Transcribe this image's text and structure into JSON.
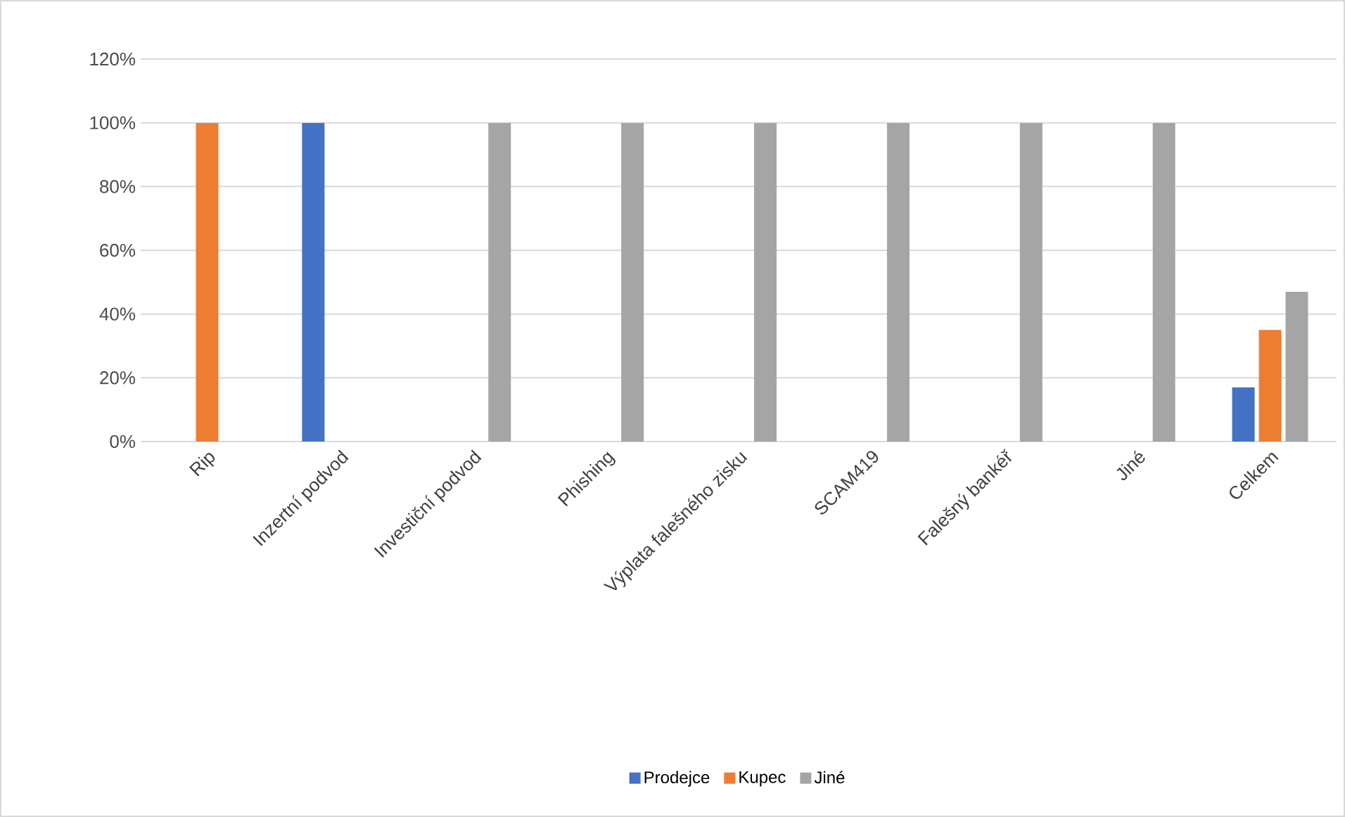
{
  "chart_data": {
    "type": "bar",
    "categories": [
      "Rip",
      "Inzertní podvod",
      "Investiční podvod",
      "Phishing",
      "Výplata falešného zisku",
      "SCAM419",
      "Falešný bankéř",
      "Jiné",
      "Celkem"
    ],
    "series": [
      {
        "name": "Prodejce",
        "color": "#4472c4",
        "values": [
          0,
          100,
          0,
          0,
          0,
          0,
          0,
          0,
          17
        ]
      },
      {
        "name": "Kupec",
        "color": "#ed7d31",
        "values": [
          100,
          0,
          0,
          0,
          0,
          0,
          0,
          0,
          35
        ]
      },
      {
        "name": "Jiné",
        "color": "#a5a5a5",
        "values": [
          0,
          0,
          100,
          100,
          100,
          100,
          100,
          100,
          47
        ]
      }
    ],
    "ylim": [
      0,
      120
    ],
    "yticks": [
      {
        "value": 0,
        "label": "0%"
      },
      {
        "value": 20,
        "label": "20%"
      },
      {
        "value": 40,
        "label": "40%"
      },
      {
        "value": 60,
        "label": "60%"
      },
      {
        "value": 80,
        "label": "80%"
      },
      {
        "value": 100,
        "label": "100%"
      },
      {
        "value": 120,
        "label": "120%"
      }
    ],
    "grid": "y",
    "legend": "bottom"
  }
}
